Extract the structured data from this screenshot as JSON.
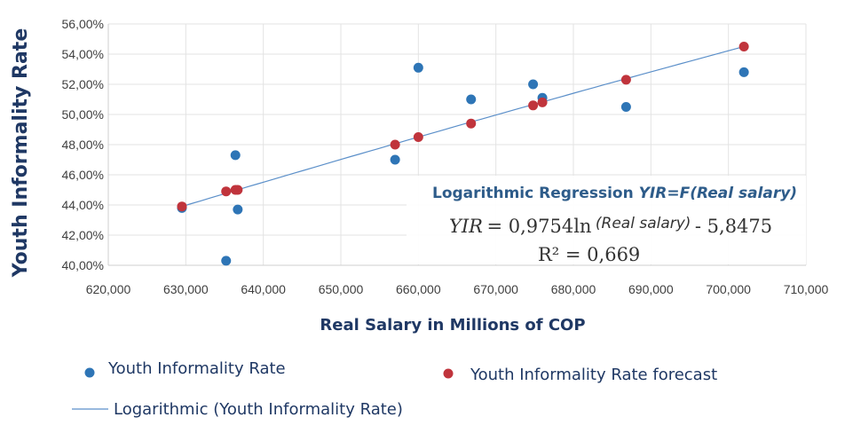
{
  "chart_data": {
    "type": "scatter",
    "xlabel": "Real Salary in Millions of COP",
    "ylabel": "Youth Informality Rate",
    "xlim": [
      620000,
      710000
    ],
    "ylim": [
      40,
      56
    ],
    "x_ticks": [
      "620,000",
      "630,000",
      "640,000",
      "650,000",
      "660,000",
      "670,000",
      "680,000",
      "690,000",
      "700,000",
      "710,000"
    ],
    "y_ticks": [
      "40,00%",
      "42,00%",
      "44,00%",
      "46,00%",
      "48,00%",
      "50,00%",
      "52,00%",
      "54,00%",
      "56,00%"
    ],
    "colors": {
      "actual": "#2e75b6",
      "forecast": "#c0343c",
      "trend": "#5b8fc9"
    },
    "series": [
      {
        "name": "Youth Informality Rate",
        "points": [
          [
            629500,
            43.8
          ],
          [
            635200,
            40.3
          ],
          [
            636400,
            47.3
          ],
          [
            636700,
            43.7
          ],
          [
            657000,
            47.0
          ],
          [
            660000,
            53.1
          ],
          [
            666800,
            51.0
          ],
          [
            674800,
            52.0
          ],
          [
            676000,
            51.1
          ],
          [
            686800,
            50.5
          ],
          [
            702000,
            52.8
          ]
        ]
      },
      {
        "name": "Youth Informality Rate forecast",
        "points": [
          [
            629500,
            43.9
          ],
          [
            635200,
            44.9
          ],
          [
            636400,
            45.0
          ],
          [
            636700,
            45.0
          ],
          [
            657000,
            48.0
          ],
          [
            660000,
            48.5
          ],
          [
            666800,
            49.4
          ],
          [
            674800,
            50.6
          ],
          [
            676000,
            50.8
          ],
          [
            686800,
            52.3
          ],
          [
            702000,
            54.5
          ]
        ]
      }
    ],
    "trendline": {
      "name": "Logarithmic (Youth Informality Rate)",
      "coef_a": 0.9754,
      "coef_b": -5.8475,
      "x_start": 629500,
      "x_end": 702000
    },
    "annotation": {
      "title_plain": "Logarithmic Regression ",
      "title_italic": "YIR=F(Real salary)",
      "eq_lhs": "YIR",
      "eq_mid": "= 0,9754ln",
      "eq_paren": "(Real salary)",
      "eq_rhs": "- 5,8475",
      "r2": "R² = 0,669"
    },
    "legend": [
      {
        "label": "Youth Informality Rate",
        "kind": "dot-actual"
      },
      {
        "label": "Youth Informality Rate forecast",
        "kind": "dot-forecast"
      },
      {
        "label": "Logarithmic (Youth Informality Rate)",
        "kind": "line"
      }
    ]
  }
}
